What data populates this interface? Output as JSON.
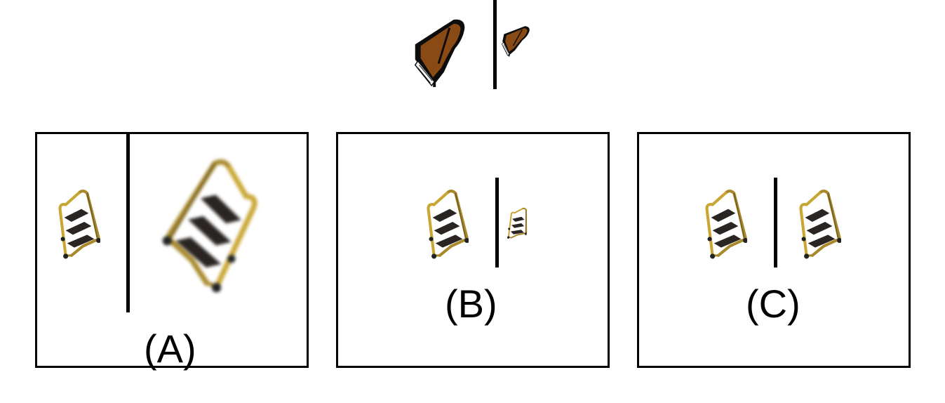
{
  "reference": {
    "left_object": "grand-piano",
    "right_object": "grand-piano-small-rotated"
  },
  "options": [
    {
      "label": "(A)",
      "left_object": "step-ladder",
      "right_object": "step-ladder-large-rotated-blurred"
    },
    {
      "label": "(B)",
      "left_object": "step-ladder",
      "right_object": "step-ladder-small-rotated"
    },
    {
      "label": "(C)",
      "left_object": "step-ladder",
      "right_object": "step-ladder-same"
    }
  ],
  "colors": {
    "ladder_frame": "#a8892a",
    "ladder_step": "#2a2522",
    "piano_wood": "#8a4a14",
    "piano_black": "#0d0d0d",
    "line": "#000000"
  }
}
